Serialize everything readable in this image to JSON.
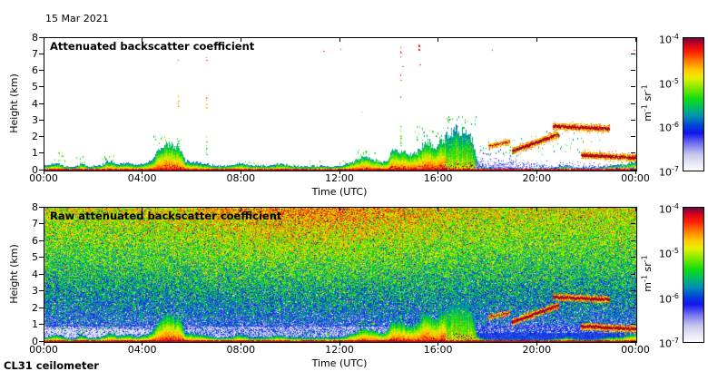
{
  "header": {
    "date": "15 Mar 2021"
  },
  "footer": {
    "instrument": "CL31 ceilometer"
  },
  "axes": {
    "x_label": "Time (UTC)",
    "y_label": "Height (km)",
    "x_tick_labels": [
      "00:00",
      "04:00",
      "08:00",
      "12:00",
      "16:00",
      "20:00",
      "00:00"
    ],
    "x_tick_hours": [
      0,
      4,
      8,
      12,
      16,
      20,
      24
    ],
    "y_tick_km": [
      0,
      1,
      2,
      3,
      4,
      5,
      6,
      7,
      8
    ]
  },
  "colorbar": {
    "base": "10",
    "tick_exponents": [
      "-4",
      "-5",
      "-6",
      "-7"
    ],
    "unit_parts": [
      [
        "m",
        "-1"
      ],
      [
        "sr",
        "-1"
      ]
    ],
    "scale": "log10"
  },
  "colors": {
    "frame": "#000000",
    "background": "#ffffff",
    "colormap_stops": [
      [
        0.0,
        "#fbfbff"
      ],
      [
        0.05,
        "#e8e8f8"
      ],
      [
        0.12,
        "#c6c6ee"
      ],
      [
        0.2,
        "#7474ee"
      ],
      [
        0.28,
        "#1414f0"
      ],
      [
        0.34,
        "#0048d8"
      ],
      [
        0.41,
        "#0090b4"
      ],
      [
        0.48,
        "#00c060"
      ],
      [
        0.54,
        "#10dc10"
      ],
      [
        0.62,
        "#7ce800"
      ],
      [
        0.7,
        "#e8f000"
      ],
      [
        0.76,
        "#ffc800"
      ],
      [
        0.83,
        "#ff7800"
      ],
      [
        0.9,
        "#ff1e00"
      ],
      [
        0.96,
        "#cc0022"
      ],
      [
        1.0,
        "#6e0a3c"
      ]
    ]
  },
  "chart_data": [
    {
      "type": "heatmap",
      "title": "Attenuated backscatter coefficient",
      "x": {
        "label": "Time (UTC)",
        "range_hours": [
          0,
          24
        ]
      },
      "y": {
        "label": "Height (km)",
        "range_km": [
          0,
          8
        ]
      },
      "z": {
        "unit": "m-1 sr-1",
        "scale": "log10",
        "min": 1e-07,
        "max": 0.0001
      },
      "features": {
        "boundary_layer_top_km": [
          [
            0,
            0.32
          ],
          [
            0.5,
            0.5
          ],
          [
            0.8,
            0.28
          ],
          [
            1.2,
            0.22
          ],
          [
            1.5,
            0.45
          ],
          [
            1.8,
            0.25
          ],
          [
            2.3,
            0.35
          ],
          [
            2.6,
            0.6
          ],
          [
            3.0,
            0.4
          ],
          [
            3.4,
            0.5
          ],
          [
            3.7,
            0.35
          ],
          [
            4.2,
            0.5
          ],
          [
            4.55,
            1.1
          ],
          [
            4.8,
            1.55
          ],
          [
            5.1,
            1.6
          ],
          [
            5.45,
            1.45
          ],
          [
            5.7,
            0.6
          ],
          [
            6.2,
            0.5
          ],
          [
            6.6,
            0.4
          ],
          [
            7.0,
            0.3
          ],
          [
            7.6,
            0.32
          ],
          [
            7.9,
            0.5
          ],
          [
            8.3,
            0.33
          ],
          [
            9.0,
            0.3
          ],
          [
            9.6,
            0.42
          ],
          [
            10.0,
            0.3
          ],
          [
            10.6,
            0.28
          ],
          [
            11.2,
            0.3
          ],
          [
            11.7,
            0.28
          ],
          [
            12.1,
            0.35
          ],
          [
            12.6,
            0.6
          ],
          [
            12.9,
            0.9
          ],
          [
            13.3,
            0.7
          ],
          [
            13.7,
            0.5
          ],
          [
            13.95,
            0.75
          ],
          [
            14.1,
            1.3
          ],
          [
            14.45,
            1.15
          ],
          [
            14.8,
            1.0
          ],
          [
            15.1,
            1.1
          ],
          [
            15.35,
            1.6
          ],
          [
            15.6,
            1.75
          ],
          [
            15.85,
            1.3
          ],
          [
            16.1,
            1.8
          ],
          [
            16.45,
            2.3
          ],
          [
            16.75,
            2.5
          ],
          [
            17.05,
            2.35
          ],
          [
            17.35,
            1.9
          ],
          [
            17.55,
            0.4
          ],
          [
            17.8,
            0.2
          ],
          [
            18.5,
            0.18
          ],
          [
            19.5,
            0.16
          ],
          [
            20.5,
            0.18
          ],
          [
            21.2,
            0.32
          ],
          [
            21.6,
            0.2
          ],
          [
            22.3,
            0.2
          ],
          [
            22.9,
            0.3
          ],
          [
            23.4,
            0.38
          ],
          [
            24,
            0.55
          ]
        ],
        "plumes": [
          {
            "from": 4.5,
            "to": 5.6,
            "type": "plume"
          },
          {
            "from": 12.4,
            "to": 14.3,
            "type": "plume"
          },
          {
            "from": 14.3,
            "to": 16.25,
            "type": "plume"
          },
          {
            "from": 16.25,
            "to": 17.5,
            "type": "green"
          }
        ],
        "blue_speckle_top_km": [
          [
            17.45,
            0.9
          ],
          [
            18.3,
            0.8
          ],
          [
            19.2,
            0.65
          ],
          [
            20.5,
            0.55
          ],
          [
            21.5,
            0.5
          ],
          [
            22.5,
            0.48
          ],
          [
            23.2,
            0.45
          ],
          [
            24,
            0.42
          ]
        ],
        "elevated_layers": [
          [
            18.0,
            1.5,
            18.85,
            1.75,
            2
          ],
          [
            18.95,
            1.2,
            20.85,
            2.2,
            3
          ],
          [
            20.6,
            2.7,
            22.9,
            2.55,
            3
          ],
          [
            21.75,
            0.95,
            24.0,
            0.8,
            3
          ]
        ],
        "virga": [
          {
            "hour": 5.42,
            "segments": [
              [
                3.9,
                4.6,
                0.8
              ],
              [
                6.6,
                6.8,
                0.9
              ],
              [
                1.2,
                2.0,
                0.55
              ]
            ]
          },
          {
            "hour": 6.55,
            "segments": [
              [
                6.65,
                6.85,
                0.9
              ],
              [
                3.8,
                4.5,
                0.8
              ],
              [
                1.0,
                2.2,
                0.55
              ]
            ]
          },
          {
            "hour": 14.42,
            "segments": [
              [
                6.9,
                7.6,
                0.9
              ],
              [
                5.5,
                6.0,
                0.88
              ],
              [
                4.3,
                4.55,
                0.85
              ],
              [
                3.4,
                3.6,
                0.8
              ],
              [
                1.4,
                2.7,
                0.6
              ]
            ]
          },
          {
            "hour": 15.15,
            "segments": [
              [
                7.3,
                7.6,
                0.95
              ],
              [
                6.3,
                6.5,
                0.9
              ]
            ]
          }
        ],
        "scatter": [
          [
            16.2,
            17.5,
            2.6,
            3.3,
            25,
            0.45,
            0.62
          ],
          [
            15.0,
            16.2,
            1.8,
            2.7,
            30,
            0.45,
            0.65
          ],
          [
            12.6,
            13.4,
            0.9,
            1.25,
            15,
            0.5,
            0.65
          ],
          [
            19.0,
            22.5,
            1.0,
            2.4,
            45,
            0.4,
            0.62
          ],
          [
            17.6,
            19.2,
            0.9,
            1.6,
            28,
            0.35,
            0.6
          ],
          [
            4.4,
            5.7,
            1.5,
            2.1,
            20,
            0.5,
            0.7
          ],
          [
            2.2,
            2.9,
            0.6,
            1.0,
            12,
            0.5,
            0.65
          ],
          [
            1.3,
            1.7,
            0.5,
            0.9,
            8,
            0.5,
            0.65
          ],
          [
            0.3,
            0.9,
            0.5,
            1.1,
            10,
            0.45,
            0.7
          ],
          [
            7.8,
            12.2,
            0.35,
            0.6,
            25,
            0.5,
            0.68
          ],
          [
            22.8,
            24.0,
            0.5,
            0.7,
            12,
            0.6,
            0.8
          ]
        ],
        "dots": [
          [
            11.3,
            7.25,
            0.9
          ],
          [
            12.0,
            7.35,
            0.9
          ],
          [
            18.15,
            7.3,
            0.92
          ],
          [
            5.4,
            6.7,
            0.88
          ],
          [
            12.85,
            3.55,
            0.78
          ],
          [
            0.55,
            1.1,
            0.55
          ],
          [
            23.9,
            7.3,
            0.88
          ],
          [
            15.2,
            6.4,
            0.9
          ],
          [
            14.5,
            6.3,
            0.88
          ]
        ]
      }
    },
    {
      "type": "heatmap",
      "title": "Raw attenuated backscatter coefficient",
      "x": {
        "label": "Time (UTC)",
        "range_hours": [
          0,
          24
        ]
      },
      "y": {
        "label": "Height (km)",
        "range_km": [
          0,
          8
        ]
      },
      "z": {
        "unit": "m-1 sr-1",
        "scale": "log10",
        "min": 1e-07,
        "max": 0.0001
      },
      "features": {
        "background_noise": {
          "description": "range-corrected noise increasing with height",
          "midday_enhancement_center_hour": 10.8,
          "midday_enhancement_width_hours": 5.2,
          "white_zone_hours": [
            0,
            4.3
          ],
          "white_zone_top_km": 0.78,
          "speckle_zone_top_km": 0.95,
          "dense_blue_after_hour": 16.5
        },
        "overlays_same_as_panel": 0
      }
    }
  ]
}
